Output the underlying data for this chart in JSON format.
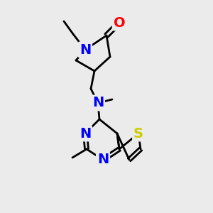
{
  "background_color": "#ebebeb",
  "atom_colors": {
    "C": "#000000",
    "N": "#0000ff",
    "O": "#ff0000",
    "S": "#cccc00"
  },
  "bond_color": "#000000",
  "title": "",
  "figsize": [
    3.0,
    3.0
  ],
  "dpi": 100
}
